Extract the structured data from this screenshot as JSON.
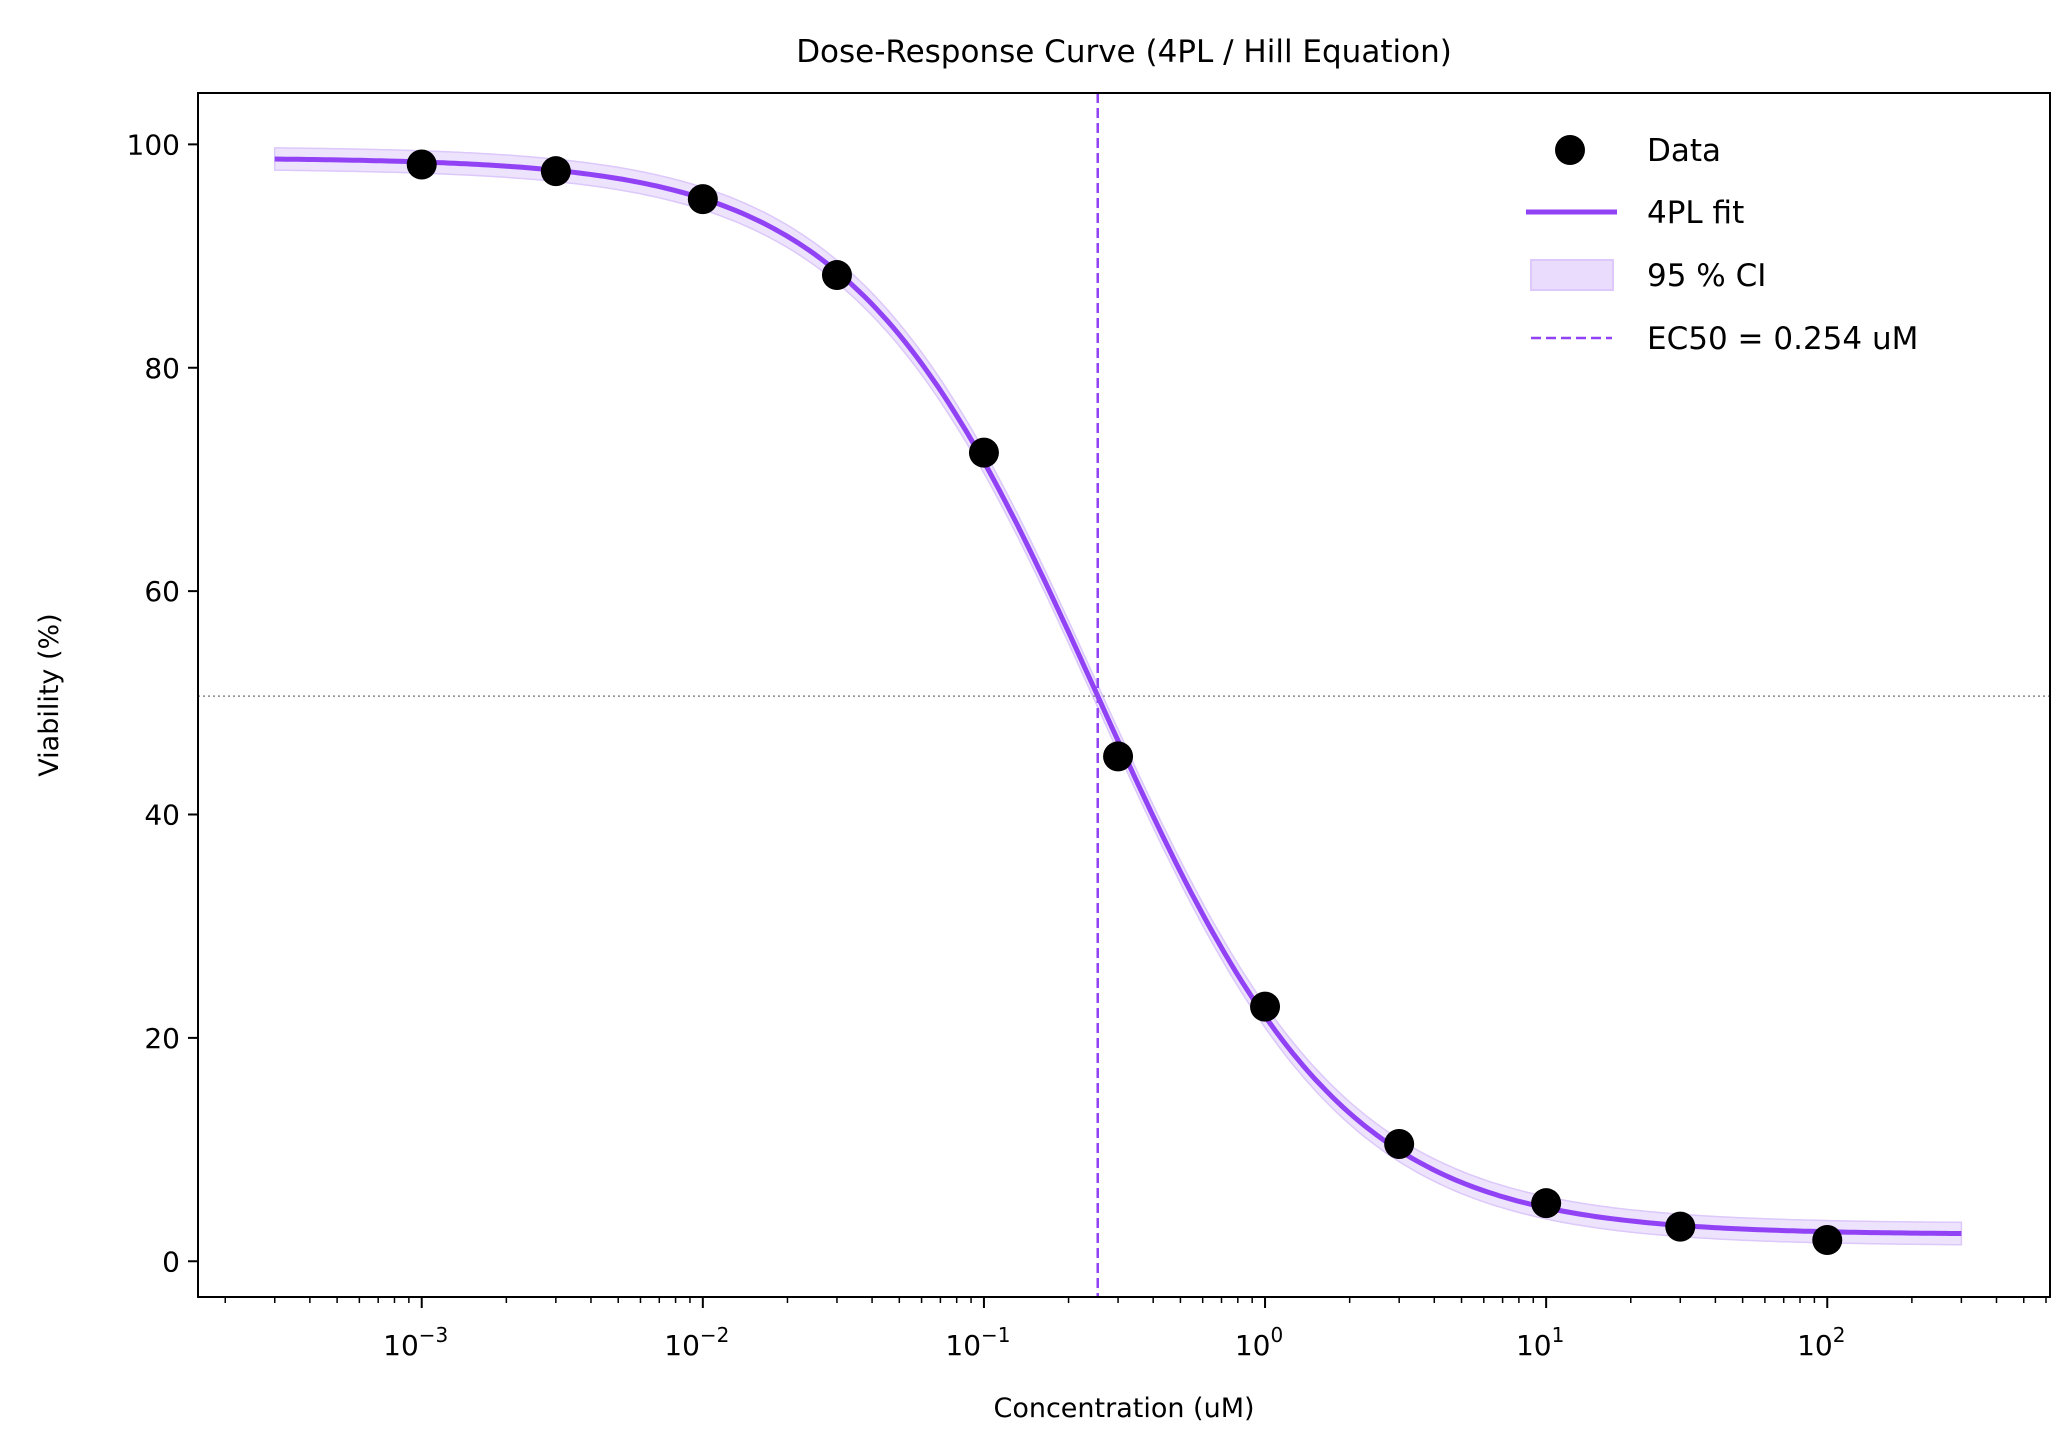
{
  "chart_data": {
    "type": "scatter",
    "title": "Dose-Response Curve (4PL / Hill Equation)",
    "xlabel": "Concentration (uM)",
    "ylabel": "Viability (%)",
    "xscale": "log",
    "xlim": [
      0.00016,
      620
    ],
    "ylim": [
      -3.2,
      104.6
    ],
    "x_ticks": [
      0.001,
      0.01,
      0.1,
      1,
      10,
      100
    ],
    "x_tick_labels": [
      {
        "base": "10",
        "exp": "−3"
      },
      {
        "base": "10",
        "exp": "−2"
      },
      {
        "base": "10",
        "exp": "−1"
      },
      {
        "base": "10",
        "exp": "0"
      },
      {
        "base": "10",
        "exp": "1"
      },
      {
        "base": "10",
        "exp": "2"
      }
    ],
    "y_ticks": [
      0,
      20,
      40,
      60,
      80,
      100
    ],
    "y_tick_labels": [
      "0",
      "20",
      "40",
      "60",
      "80",
      "100"
    ],
    "grid": false,
    "legend_placement": "top-right",
    "series": [
      {
        "name": "Data",
        "kind": "scatter",
        "color": "#000000",
        "x": [
          0.001,
          0.003,
          0.01,
          0.03,
          0.1,
          0.3,
          1,
          3,
          10,
          30,
          100
        ],
        "y": [
          98.2,
          97.6,
          95.1,
          88.3,
          72.4,
          45.2,
          22.8,
          10.5,
          5.2,
          3.1,
          1.9
        ]
      },
      {
        "name": "4PL fit",
        "kind": "line",
        "color": "#9142f5",
        "params": {
          "top": 98.8,
          "bottom": 2.4,
          "ec50": 0.254,
          "hill": 1.0
        },
        "x_range": [
          0.0003,
          300
        ]
      },
      {
        "name": "95 % CI",
        "kind": "band",
        "color": "#e9dcfc",
        "half_width": 1.0
      },
      {
        "name": "EC50 = 0.254 uM",
        "kind": "vline",
        "x": 0.254,
        "color": "#9142f5",
        "style": "dashed"
      }
    ],
    "reference_lines": [
      {
        "kind": "hline",
        "y": 50.6,
        "color": "#888888",
        "style": "dotted"
      }
    ]
  }
}
